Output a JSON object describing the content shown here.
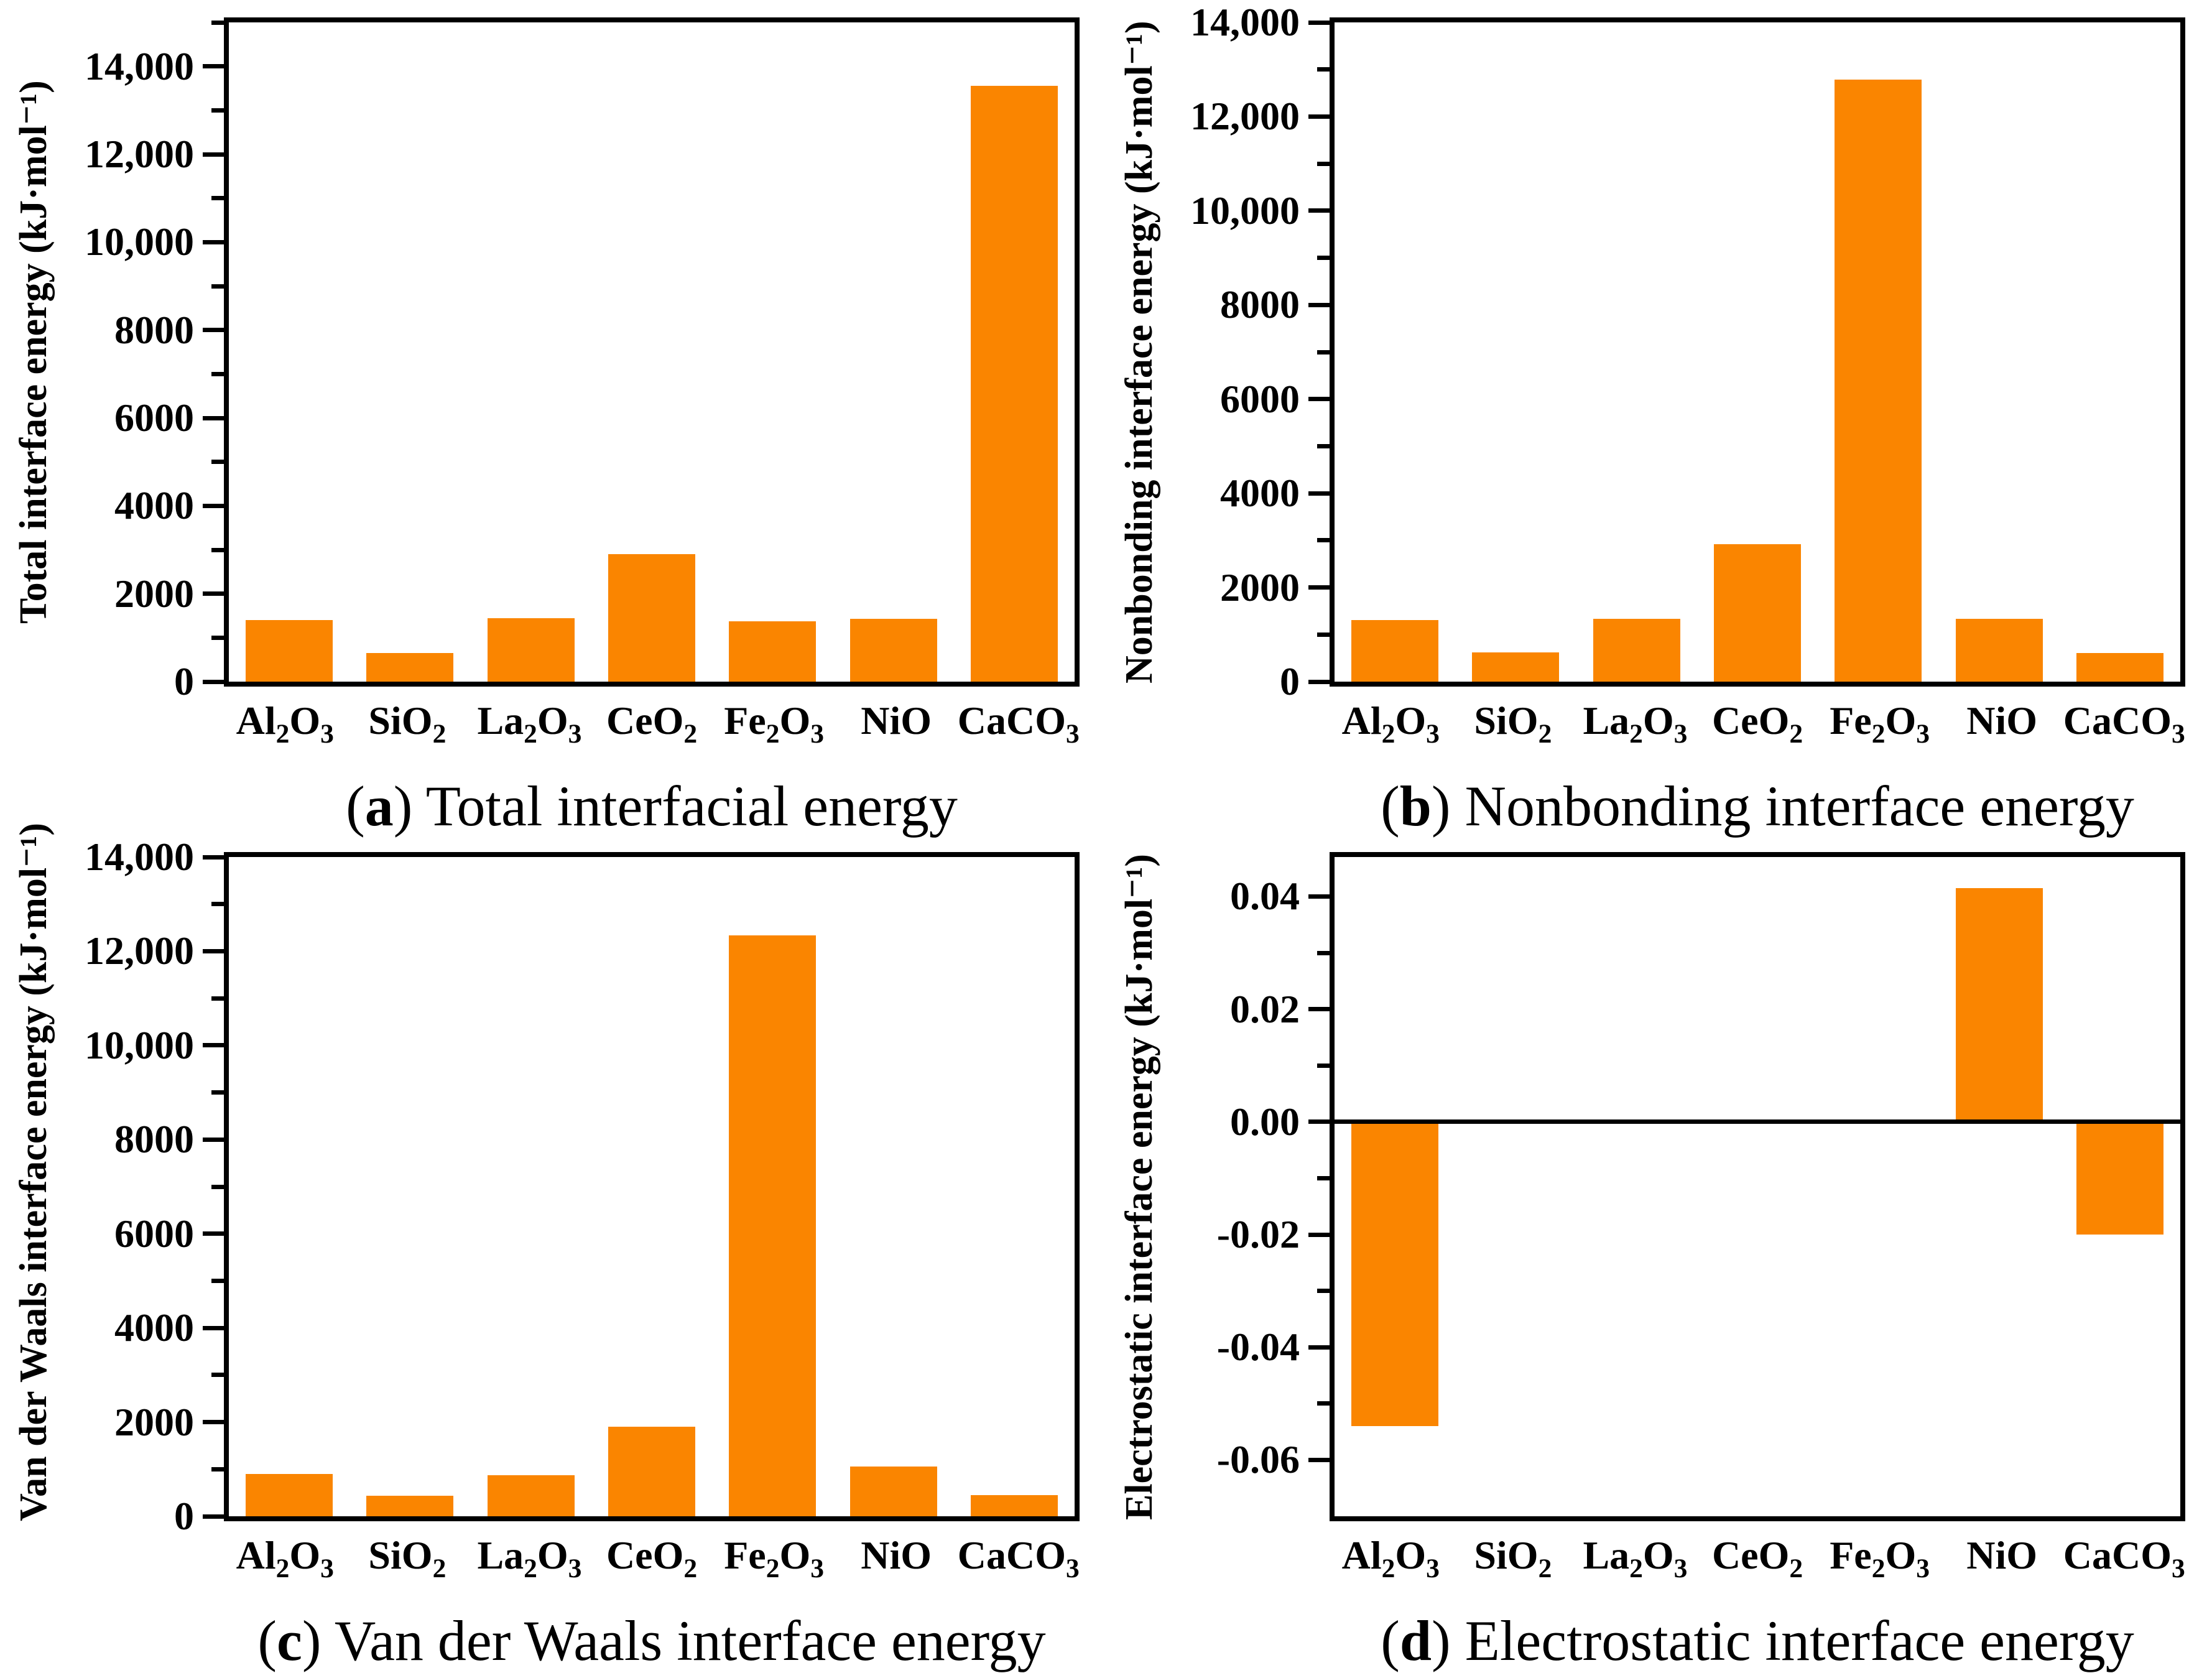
{
  "figure": {
    "background": "#ffffff",
    "bar_color": "#FA8500",
    "axis_color": "#000000"
  },
  "chart_data": [
    {
      "type": "bar",
      "caption_letter": "a",
      "caption_text": "Total interfacial energy",
      "ylabel": "Total interface energy (kJ·mol⁻¹)",
      "categories": [
        "Al2O3",
        "SiO2",
        "La2O3",
        "CeO2",
        "Fe2O3",
        "NiO",
        "CaCO3"
      ],
      "values": [
        1400,
        650,
        1440,
        2900,
        1370,
        1430,
        13550
      ],
      "ylim": [
        0,
        15000
      ],
      "ytick_values": [
        0,
        2000,
        4000,
        6000,
        8000,
        10000,
        12000,
        14000
      ],
      "ytick_labels": [
        "0",
        "2000",
        "4000",
        "6000",
        "8000",
        "10,000",
        "12,000",
        "14,000"
      ],
      "minor_tick_values": [
        1000,
        3000,
        5000,
        7000,
        9000,
        11000,
        13000,
        15000
      ],
      "zero_line": false,
      "grid": false,
      "legend": "none"
    },
    {
      "type": "bar",
      "caption_letter": "b",
      "caption_text": "Nonbonding interface energy",
      "ylabel": "Nonbonding interface energy (kJ·mol⁻¹)",
      "categories": [
        "Al2O3",
        "SiO2",
        "La2O3",
        "CeO2",
        "Fe2O3",
        "NiO",
        "CaCO3"
      ],
      "values": [
        1310,
        620,
        1340,
        2920,
        12780,
        1330,
        610
      ],
      "ylim": [
        0,
        14000
      ],
      "ytick_values": [
        0,
        2000,
        4000,
        6000,
        8000,
        10000,
        12000,
        14000
      ],
      "ytick_labels": [
        "0",
        "2000",
        "4000",
        "6000",
        "8000",
        "10,000",
        "12,000",
        "14,000"
      ],
      "minor_tick_values": [
        1000,
        3000,
        5000,
        7000,
        9000,
        11000,
        13000
      ],
      "zero_line": false,
      "grid": false,
      "legend": "none"
    },
    {
      "type": "bar",
      "caption_letter": "c",
      "caption_text": "Van der Waals interface energy",
      "ylabel": "Van der Waals interface energy (kJ·mol⁻¹)",
      "categories": [
        "Al2O3",
        "SiO2",
        "La2O3",
        "CeO2",
        "Fe2O3",
        "NiO",
        "CaCO3"
      ],
      "values": [
        900,
        440,
        870,
        1900,
        12340,
        1060,
        450
      ],
      "ylim": [
        0,
        14000
      ],
      "ytick_values": [
        0,
        2000,
        4000,
        6000,
        8000,
        10000,
        12000,
        14000
      ],
      "ytick_labels": [
        "0",
        "2000",
        "4000",
        "6000",
        "8000",
        "10,000",
        "12,000",
        "14,000"
      ],
      "minor_tick_values": [
        1000,
        3000,
        5000,
        7000,
        9000,
        11000,
        13000
      ],
      "zero_line": false,
      "grid": false,
      "legend": "none"
    },
    {
      "type": "bar",
      "caption_letter": "d",
      "caption_text": "Electrostatic interface energy",
      "ylabel": "Electrostatic interface energy (kJ·mol⁻¹)",
      "categories": [
        "Al2O3",
        "SiO2",
        "La2O3",
        "CeO2",
        "Fe2O3",
        "NiO",
        "CaCO3"
      ],
      "values": [
        -0.054,
        0,
        0,
        0,
        0,
        0.0415,
        -0.02
      ],
      "ylim": [
        -0.07,
        0.047
      ],
      "ytick_values": [
        0.04,
        0.02,
        0.0,
        -0.02,
        -0.04,
        -0.06
      ],
      "ytick_labels": [
        "0.04",
        "0.02",
        "0.00",
        "-0.02",
        "-0.04",
        "-0.06"
      ],
      "minor_tick_values": [
        0.03,
        0.01,
        -0.01,
        -0.03,
        -0.05
      ],
      "zero_line": true,
      "grid": false,
      "legend": "none"
    }
  ]
}
